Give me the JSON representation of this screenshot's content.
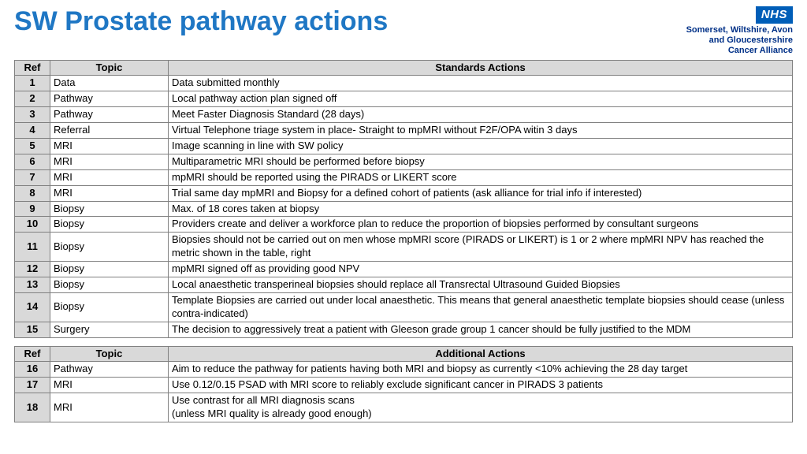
{
  "title": "SW Prostate pathway actions",
  "logo": {
    "nhs": "NHS",
    "line1": "Somerset, Wiltshire, Avon",
    "line2": "and Gloucestershire",
    "line3": "Cancer Alliance"
  },
  "colors": {
    "title": "#1f77c4",
    "nhs_bg": "#005eb8",
    "header_bg": "#d9d9d9",
    "border": "#808080",
    "logo_text": "#003087"
  },
  "table1": {
    "headers": {
      "ref": "Ref",
      "topic": "Topic",
      "action": "Standards Actions"
    },
    "rows": [
      {
        "ref": "1",
        "topic": "Data",
        "action": "Data submitted monthly"
      },
      {
        "ref": "2",
        "topic": "Pathway",
        "action": "Local pathway action plan signed off"
      },
      {
        "ref": "3",
        "topic": "Pathway",
        "action": "Meet Faster Diagnosis Standard (28 days)"
      },
      {
        "ref": "4",
        "topic": "Referral",
        "action": "Virtual Telephone triage system in place- Straight to mpMRI without F2F/OPA witin 3 days"
      },
      {
        "ref": "5",
        "topic": "MRI",
        "action": "Image scanning in line with SW policy"
      },
      {
        "ref": "6",
        "topic": "MRI",
        "action": "Multiparametric MRI should be performed before biopsy"
      },
      {
        "ref": "7",
        "topic": "MRI",
        "action": "mpMRI should be reported using the PIRADS or LIKERT score"
      },
      {
        "ref": "8",
        "topic": "MRI",
        "action": "Trial same day mpMRI and Biopsy for a defined cohort of patients (ask alliance for trial info if interested)"
      },
      {
        "ref": "9",
        "topic": "Biopsy",
        "action": "Max. of 18 cores taken at biopsy"
      },
      {
        "ref": "10",
        "topic": "Biopsy",
        "action": "Providers create and deliver a workforce plan to reduce the proportion of biopsies performed by consultant surgeons"
      },
      {
        "ref": "11",
        "topic": "Biopsy",
        "action": "Biopsies should not be carried out on men whose mpMRI score (PIRADS or LIKERT) is 1 or 2 where mpMRI NPV has reached the metric shown in the table, right"
      },
      {
        "ref": "12",
        "topic": "Biopsy",
        "action": "mpMRI signed off as providing good NPV"
      },
      {
        "ref": "13",
        "topic": "Biopsy",
        "action": "Local anaesthetic transperineal biopsies should replace all Transrectal Ultrasound Guided Biopsies"
      },
      {
        "ref": "14",
        "topic": "Biopsy",
        "action": "Template Biopsies are carried out under local anaesthetic. This means that general anaesthetic template biopsies should cease (unless contra-indicated)"
      },
      {
        "ref": "15",
        "topic": "Surgery",
        "action": "The decision to aggressively treat a patient with Gleeson grade group 1 cancer should be fully justified to the MDM"
      }
    ]
  },
  "table2": {
    "headers": {
      "ref": "Ref",
      "topic": "Topic",
      "action": "Additional Actions"
    },
    "rows": [
      {
        "ref": "16",
        "topic": "Pathway",
        "action": "Aim to reduce the pathway for patients having both MRI and biopsy as currently <10% achieving the 28 day target"
      },
      {
        "ref": "17",
        "topic": "MRI",
        "action": "Use 0.12/0.15 PSAD with MRI score to reliably exclude significant cancer in PIRADS 3 patients"
      },
      {
        "ref": "18",
        "topic": "MRI",
        "action": "Use contrast for all MRI diagnosis scans\n(unless MRI quality is already good enough)"
      }
    ]
  }
}
